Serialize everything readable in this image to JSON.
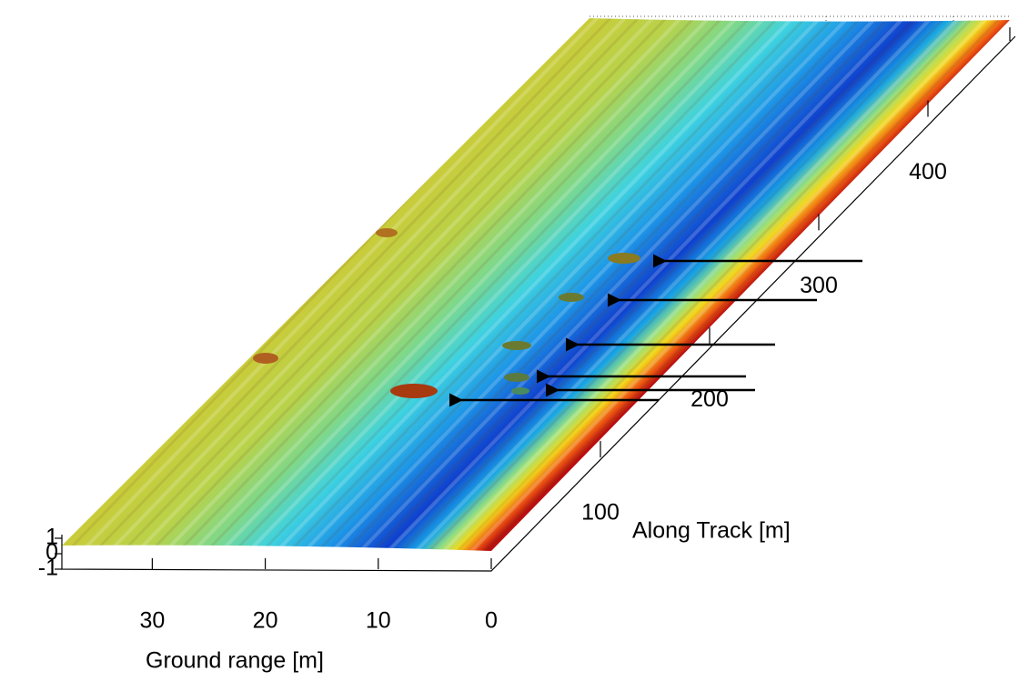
{
  "chart_data": {
    "type": "surface",
    "xlabel": "Ground range [m]",
    "ylabel": "Along Track [m]",
    "xlim": [
      0,
      38
    ],
    "xticks": [
      0,
      10,
      20,
      30
    ],
    "ylim": [
      0,
      470
    ],
    "yticks": [
      100,
      200,
      300,
      400
    ],
    "zlim": [
      -1,
      1
    ],
    "zticks": [
      -1,
      0,
      1
    ]
  }
}
